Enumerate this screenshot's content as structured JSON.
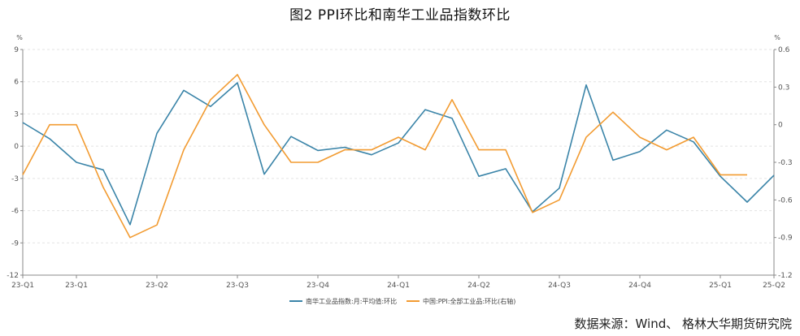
{
  "title": "图2      PPI环比和南华工业品指数环比",
  "source": "数据来源：Wind、 格林大华期货研究院",
  "chart_data": {
    "type": "line",
    "title": "图2      PPI环比和南华工业品指数环比",
    "left_axis": {
      "unit": "%",
      "ylim": [
        -12,
        9
      ],
      "ticks": [
        9,
        6,
        3,
        0,
        -3,
        -6,
        -9,
        -12
      ]
    },
    "right_axis": {
      "unit": "%",
      "ylim": [
        -1.2,
        0.6
      ],
      "ticks": [
        "0.6",
        "0.3",
        "0",
        "-0.3",
        "-0.6",
        "-0.9",
        "-1.2"
      ]
    },
    "x_tick_labels": [
      {
        "i": 0,
        "label": "23-Q1"
      },
      {
        "i": 2,
        "label": "23-Q1"
      },
      {
        "i": 5,
        "label": "23-Q2"
      },
      {
        "i": 8,
        "label": "23-Q3"
      },
      {
        "i": 11,
        "label": "23-Q4"
      },
      {
        "i": 14,
        "label": "24-Q1"
      },
      {
        "i": 17,
        "label": "24-Q2"
      },
      {
        "i": 20,
        "label": "24-Q3"
      },
      {
        "i": 23,
        "label": "24-Q4"
      },
      {
        "i": 26,
        "label": "25-Q1"
      },
      {
        "i": 28,
        "label": "25-Q2"
      }
    ],
    "grid": true,
    "legend_position": "bottom-center",
    "series": [
      {
        "name": "南华工业品指数:月:平均值:环比",
        "axis": "left",
        "color": "#3a84a8",
        "values": [
          2.2,
          0.7,
          -1.5,
          -2.2,
          -7.3,
          1.2,
          5.2,
          3.7,
          5.9,
          -2.6,
          0.9,
          -0.4,
          -0.1,
          -0.8,
          0.3,
          3.4,
          2.6,
          -2.8,
          -2.1,
          -6.1,
          -3.9,
          5.7,
          -1.3,
          -0.5,
          1.5,
          0.4,
          -2.8,
          -5.2,
          -2.7
        ]
      },
      {
        "name": "中国:PPI:全部工业品:环比(右轴)",
        "axis": "right",
        "color": "#f29b31",
        "values": [
          -0.4,
          0.0,
          0.0,
          -0.5,
          -0.9,
          -0.8,
          -0.2,
          0.2,
          0.4,
          0.0,
          -0.3,
          -0.3,
          -0.2,
          -0.2,
          -0.1,
          -0.2,
          0.2,
          -0.2,
          -0.2,
          -0.7,
          -0.6,
          -0.1,
          0.1,
          -0.1,
          -0.2,
          -0.1,
          -0.4,
          -0.4,
          null
        ]
      }
    ]
  }
}
